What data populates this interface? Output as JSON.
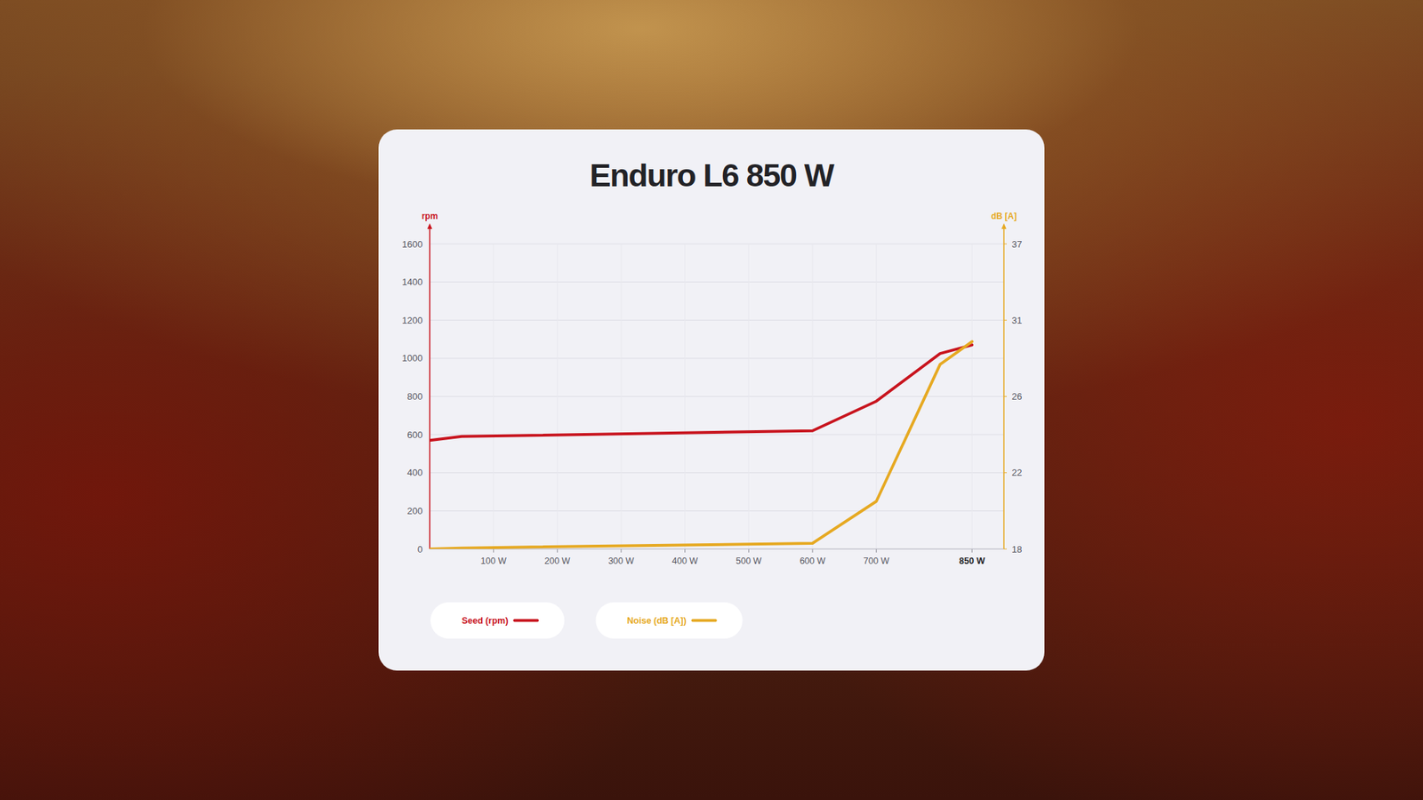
{
  "chart_data": {
    "type": "line",
    "title": "Enduro L6 850 W",
    "y_label": "rpm",
    "y2_label": "dB [A]",
    "x": [
      0,
      50,
      600,
      700,
      800,
      850
    ],
    "xlim": [
      0,
      900
    ],
    "xticks": [
      {
        "value": 100,
        "label": "100 W"
      },
      {
        "value": 200,
        "label": "200 W"
      },
      {
        "value": 300,
        "label": "300 W"
      },
      {
        "value": 400,
        "label": "400 W"
      },
      {
        "value": 500,
        "label": "500 W"
      },
      {
        "value": 600,
        "label": "600 W"
      },
      {
        "value": 700,
        "label": "700 W"
      },
      {
        "value": 850,
        "label": "850 W"
      }
    ],
    "ylim": [
      0,
      1600
    ],
    "yticks": [
      0,
      200,
      400,
      600,
      800,
      1000,
      1200,
      1400,
      1600
    ],
    "y2lim": [
      18,
      37
    ],
    "y2ticks": [
      18,
      22,
      26,
      31,
      37
    ],
    "grid": true,
    "legend": "bottom",
    "series": [
      {
        "name": "Seed (rpm)",
        "color": "#c8141e",
        "values": [
          570,
          590,
          620,
          775,
          1025,
          1070
        ]
      },
      {
        "name": "Noise (dB [A])",
        "color": "#e6a922",
        "axis": "y2",
        "values": [
          18,
          18.05,
          18.3,
          20.5,
          28.1,
          29.6
        ]
      }
    ]
  }
}
